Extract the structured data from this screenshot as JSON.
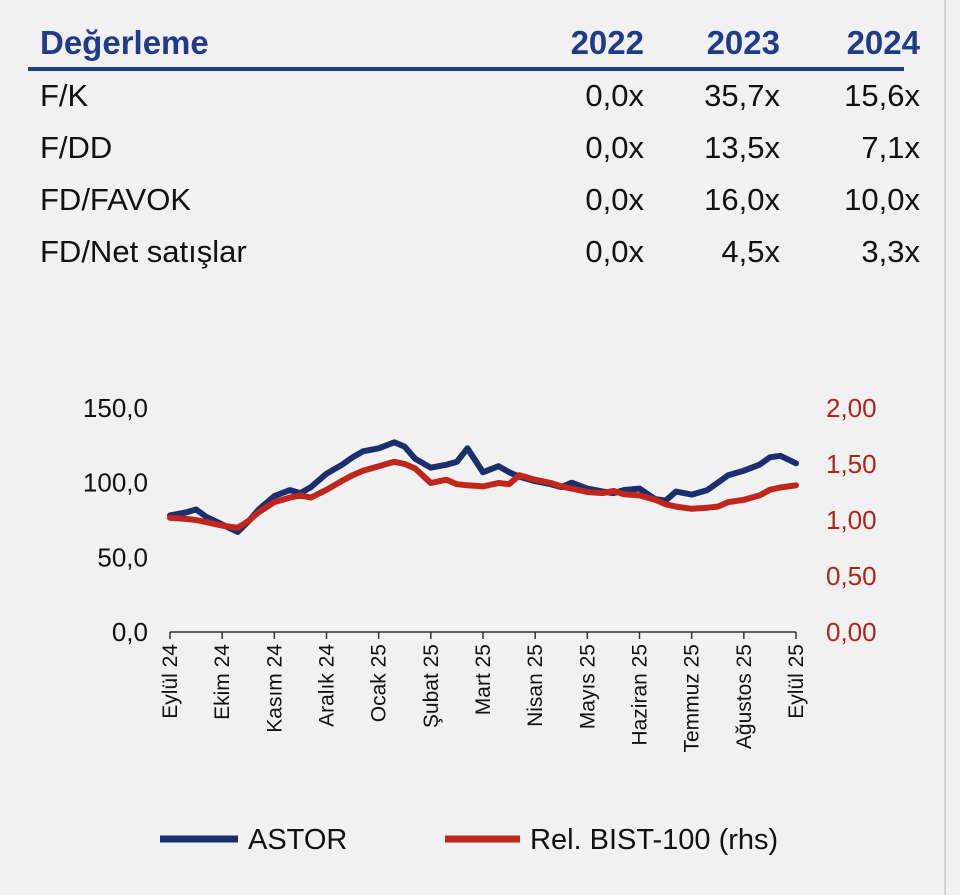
{
  "valuation_table": {
    "header": [
      "Değerleme",
      "2022",
      "2023",
      "2024"
    ],
    "rows": [
      [
        "F/K",
        "0,0x",
        "35,7x",
        "15,6x"
      ],
      [
        "F/DD",
        "0,0x",
        "13,5x",
        "7,1x"
      ],
      [
        "FD/FAVOK",
        "0,0x",
        "16,0x",
        "10,0x"
      ],
      [
        "FD/Net satışlar",
        "0,0x",
        "4,5x",
        "3,3x"
      ]
    ]
  },
  "chart_data": {
    "type": "line",
    "title": "",
    "x_categories": [
      "Eylül 24",
      "Ekim 24",
      "Kasım 24",
      "Aralık 24",
      "Ocak 25",
      "Şubat 25",
      "Mart 25",
      "Nisan 25",
      "Mayıs 25",
      "Haziran 25",
      "Temmuz 25",
      "Ağustos 25",
      "Eylül 25"
    ],
    "y_left": {
      "ticks": [
        "0,0",
        "50,0",
        "100,0",
        "150,0"
      ],
      "min": 0,
      "max": 150
    },
    "y_right": {
      "ticks": [
        "0,00",
        "0,50",
        "1,00",
        "1,50",
        "2,00"
      ],
      "min": 0,
      "max": 2
    },
    "grid": false,
    "legend_position": "bottom",
    "series": [
      {
        "name": "ASTOR",
        "axis": "left",
        "color": "#1b2f6e",
        "x": [
          0,
          0.3,
          0.5,
          0.7,
          1,
          1.3,
          1.5,
          1.7,
          2,
          2.3,
          2.5,
          2.7,
          3,
          3.3,
          3.5,
          3.7,
          4,
          4.3,
          4.5,
          4.7,
          5,
          5.3,
          5.5,
          5.7,
          6,
          6.3,
          6.5,
          6.7,
          7,
          7.3,
          7.5,
          7.7,
          8,
          8.3,
          8.5,
          8.7,
          9,
          9.3,
          9.5,
          9.7,
          10,
          10.3,
          10.5,
          10.7,
          11,
          11.3,
          11.5,
          11.7,
          12
        ],
        "y": [
          78,
          80,
          82,
          77,
          72,
          67,
          74,
          82,
          91,
          95,
          93,
          97,
          106,
          112,
          117,
          121,
          123,
          127,
          124,
          116,
          110,
          112,
          114,
          123,
          107,
          111,
          107,
          104,
          101,
          99,
          97,
          100,
          96,
          94,
          93,
          95,
          96,
          89,
          88,
          94,
          92,
          95,
          100,
          105,
          108,
          112,
          117,
          118,
          113
        ]
      },
      {
        "name": "Rel. BIST-100 (rhs)",
        "axis": "right",
        "color": "#c0261c",
        "x": [
          0,
          0.3,
          0.5,
          0.7,
          1,
          1.3,
          1.5,
          1.7,
          2,
          2.3,
          2.5,
          2.7,
          3,
          3.3,
          3.5,
          3.7,
          4,
          4.3,
          4.5,
          4.7,
          5,
          5.3,
          5.5,
          5.7,
          6,
          6.3,
          6.5,
          6.7,
          7,
          7.3,
          7.5,
          7.7,
          8,
          8.3,
          8.5,
          8.7,
          9,
          9.3,
          9.5,
          9.7,
          10,
          10.3,
          10.5,
          10.7,
          11,
          11.3,
          11.5,
          11.7,
          12
        ],
        "y": [
          1.02,
          1.01,
          1.0,
          0.98,
          0.95,
          0.93,
          0.99,
          1.07,
          1.16,
          1.2,
          1.22,
          1.2,
          1.27,
          1.35,
          1.4,
          1.44,
          1.48,
          1.52,
          1.5,
          1.46,
          1.33,
          1.36,
          1.32,
          1.31,
          1.3,
          1.33,
          1.32,
          1.4,
          1.36,
          1.33,
          1.3,
          1.28,
          1.25,
          1.24,
          1.26,
          1.23,
          1.22,
          1.18,
          1.14,
          1.12,
          1.1,
          1.11,
          1.12,
          1.16,
          1.18,
          1.22,
          1.27,
          1.29,
          1.31
        ]
      }
    ]
  }
}
